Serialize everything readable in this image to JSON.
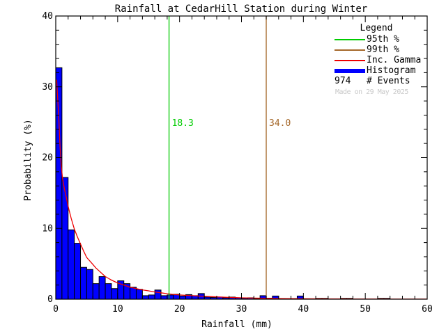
{
  "window": {
    "background": "#ffffff"
  },
  "chart_data": {
    "type": "bar",
    "title": "Rainfall at CedarHill Station during Winter",
    "xlabel": "Rainfall (mm)",
    "ylabel": "Probability (%)",
    "xlim": [
      0,
      60
    ],
    "ylim": [
      0,
      40
    ],
    "xticks": [
      0,
      10,
      20,
      30,
      40,
      50,
      60
    ],
    "yticks": [
      0,
      10,
      20,
      30,
      40
    ],
    "x_minor_step": 2,
    "y_minor_step": 2,
    "grid": false,
    "bin_width_mm": 1,
    "histogram_percent": [
      32.7,
      17.2,
      9.8,
      7.9,
      4.5,
      4.2,
      2.2,
      3.2,
      2.2,
      1.5,
      2.6,
      2.2,
      1.7,
      1.4,
      0.5,
      0.6,
      1.3,
      0.5,
      0.6,
      0.7,
      0.45,
      0.65,
      0.5,
      0.8,
      0.3,
      0.25,
      0.3,
      0.2,
      0.3,
      0.2,
      0.15,
      0.2,
      0.1,
      0.5,
      0.15,
      0.45,
      0.1,
      0.1,
      0.1,
      0.45,
      0,
      0,
      0.12,
      0.12,
      0,
      0,
      0.12,
      0.12,
      0,
      0,
      0,
      0,
      0.12,
      0.12,
      0,
      0,
      0,
      0,
      0,
      0
    ],
    "gamma_curve": {
      "name": "Inc. Gamma",
      "points": [
        [
          0.15,
          31
        ],
        [
          0.3,
          28.5
        ],
        [
          0.5,
          25.5
        ],
        [
          0.7,
          21.5
        ],
        [
          0.9,
          18.7
        ],
        [
          1.1,
          17
        ],
        [
          1.4,
          15.6
        ],
        [
          1.7,
          14.4
        ],
        [
          2,
          13.1
        ],
        [
          2.5,
          11.4
        ],
        [
          3,
          9.9
        ],
        [
          3.5,
          8.8
        ],
        [
          4,
          7.8
        ],
        [
          4.5,
          6.8
        ],
        [
          5,
          5.9
        ],
        [
          5.5,
          5.4
        ],
        [
          6,
          4.9
        ],
        [
          6.5,
          4.4
        ],
        [
          7,
          4.0
        ],
        [
          7.5,
          3.6
        ],
        [
          8,
          3.2
        ],
        [
          8.5,
          2.95
        ],
        [
          9,
          2.7
        ],
        [
          9.5,
          2.5
        ],
        [
          10,
          2.3
        ],
        [
          11,
          2.0
        ],
        [
          12,
          1.7
        ],
        [
          13,
          1.5
        ],
        [
          14,
          1.32
        ],
        [
          15,
          1.18
        ],
        [
          16,
          1.02
        ],
        [
          17,
          0.9
        ],
        [
          18,
          0.78
        ],
        [
          18.3,
          0.75
        ],
        [
          19,
          0.68
        ],
        [
          20,
          0.6
        ],
        [
          21,
          0.55
        ],
        [
          22,
          0.5
        ],
        [
          23,
          0.45
        ],
        [
          24,
          0.4
        ],
        [
          25,
          0.36
        ],
        [
          26,
          0.32
        ],
        [
          27,
          0.29
        ],
        [
          28,
          0.26
        ],
        [
          29,
          0.23
        ],
        [
          30,
          0.2
        ],
        [
          32,
          0.16
        ],
        [
          34,
          0.13
        ],
        [
          36,
          0.1
        ],
        [
          38,
          0.085
        ],
        [
          40,
          0.07
        ],
        [
          42,
          0.06
        ],
        [
          44,
          0.05
        ],
        [
          46,
          0.045
        ],
        [
          48,
          0.04
        ],
        [
          50,
          0.03
        ],
        [
          52,
          0.027
        ],
        [
          54,
          0.024
        ],
        [
          56,
          0.02
        ],
        [
          58,
          0.018
        ],
        [
          60,
          0.015
        ]
      ]
    },
    "percentiles": [
      {
        "name": "95th %",
        "value": 18.3,
        "label": "18.3"
      },
      {
        "name": "99th %",
        "value": 34.0,
        "label": "34.0"
      }
    ],
    "n_events": 974
  },
  "legend": {
    "title": "Legend",
    "items": [
      {
        "label": "95th %",
        "swatch": "line",
        "color": "#00cc00"
      },
      {
        "label": "99th %",
        "swatch": "line",
        "color": "#a5682a"
      },
      {
        "label": "Inc. Gamma",
        "swatch": "line",
        "color": "#ee0000"
      },
      {
        "label": "Histogram",
        "swatch": "thick",
        "color": "#0000ff"
      }
    ],
    "events_value": "974",
    "events_label": "# Events"
  },
  "watermark": "Made on 29 May 2025",
  "colors": {
    "histogram_fill": "#0000ff",
    "bar_outline": "#000000",
    "curve": "#ee0000",
    "p95_line": "#00cc00",
    "p99_line": "#a5682a",
    "axis": "#000000",
    "watermark": "#c9c9c9",
    "background": "#ffffff"
  }
}
